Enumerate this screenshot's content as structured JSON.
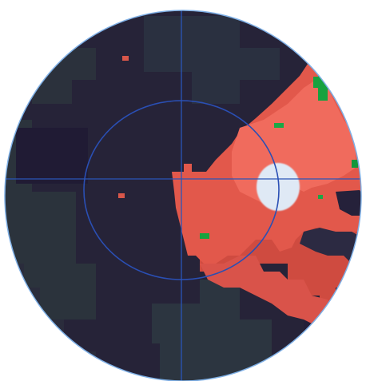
{
  "figure": {
    "kind": "perimetry-color-map",
    "crosshair": true,
    "central_ring": true,
    "blind_spot_marker": true
  },
  "palette": {
    "background_page": "#ffffff",
    "outer_ring": "#7fb0e6",
    "crosshair": "#2a55b8",
    "deep_navy": "#241d3a",
    "dark_green_navy": "#2c3340",
    "mid_navy": "#2a2a46",
    "coral_dark": "#d24a3e",
    "coral_mid": "#e45a4c",
    "coral_light": "#f06a5c",
    "green_patch": "#17a43f",
    "blind_spot": "#dfe9f5"
  }
}
